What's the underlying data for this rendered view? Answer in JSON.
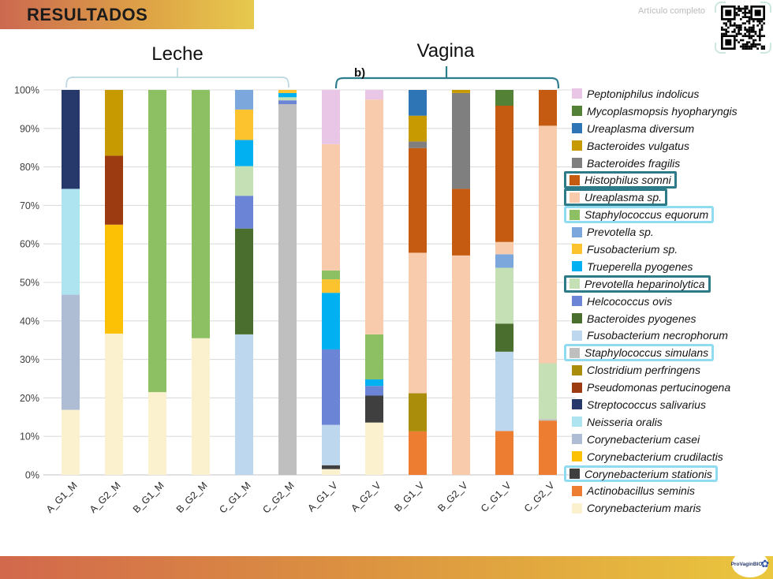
{
  "slide": {
    "title": "RESULTADOS",
    "article_note": "Artículo completo",
    "logo_text": "ProVaginBIO"
  },
  "chart_data": {
    "type": "bar",
    "subtype": "stacked-100-percent",
    "title": "",
    "panel_label": "b)",
    "group_labels": [
      {
        "label": "Leche",
        "categories": [
          "A_G1_M",
          "A_G2_M",
          "B_G1_M",
          "B_G2_M",
          "C_G1_M",
          "C_G2_M"
        ]
      },
      {
        "label": "Vagina",
        "categories": [
          "A_G1_V",
          "A_G2_V",
          "B_G1_V",
          "B_G2_V",
          "C_G1_V",
          "C_G2_V"
        ]
      }
    ],
    "y_ticks": [
      "0%",
      "10%",
      "20%",
      "30%",
      "40%",
      "50%",
      "60%",
      "70%",
      "80%",
      "90%",
      "100%"
    ],
    "ylim": [
      0,
      100
    ],
    "grid": true,
    "legend_position": "right",
    "highlight_colors": {
      "teal": "#2d7a88",
      "cyan": "#8fdcf0"
    },
    "categories": [
      "A_G1_M",
      "A_G2_M",
      "B_G1_M",
      "B_G2_M",
      "C_G1_M",
      "C_G2_M",
      "A_G1_V",
      "A_G2_V",
      "B_G1_V",
      "B_G2_V",
      "C_G1_V",
      "C_G2_V"
    ],
    "species": [
      {
        "id": "indolicus",
        "name": "Peptoniphilus indolicus",
        "color": "#eac6e6",
        "box": null
      },
      {
        "id": "hyopharyngis",
        "name": "Mycoplasmopsis hyopharyngis",
        "color": "#538135",
        "box": null
      },
      {
        "id": "diversum",
        "name": "Ureaplasma diversum",
        "color": "#2e75b6",
        "box": null
      },
      {
        "id": "vulgatus",
        "name": "Bacteroides vulgatus",
        "color": "#c79a02",
        "box": null
      },
      {
        "id": "fragilis",
        "name": "Bacteroides fragilis",
        "color": "#7f7f7f",
        "box": null
      },
      {
        "id": "somni",
        "name": "Histophilus somni",
        "color": "#c55a11",
        "box": "teal"
      },
      {
        "id": "ureaplasma_sp",
        "name": "Ureaplasma sp.",
        "color": "#f7cbac",
        "box": "teal"
      },
      {
        "id": "equorum",
        "name": "Staphylococcus equorum",
        "color": "#8dbf63",
        "box": "cyan"
      },
      {
        "id": "prevotella_sp",
        "name": "Prevotella sp.",
        "color": "#7ba7dc",
        "box": null
      },
      {
        "id": "fusobacterium_sp",
        "name": "Fusobacterium sp.",
        "color": "#fdc32e",
        "box": null
      },
      {
        "id": "pyogenes_t",
        "name": "Trueperella pyogenes",
        "color": "#00b0f0",
        "box": null
      },
      {
        "id": "heparinolytica",
        "name": "Prevotella heparinolytica",
        "color": "#c5e0b4",
        "box": "teal"
      },
      {
        "id": "ovis",
        "name": "Helcococcus ovis",
        "color": "#6b84d6",
        "box": null
      },
      {
        "id": "pyogenes_b",
        "name": "Bacteroides pyogenes",
        "color": "#4a6e2d",
        "box": null
      },
      {
        "id": "necrophorum",
        "name": "Fusobacterium necrophorum",
        "color": "#bdd7ee",
        "box": null
      },
      {
        "id": "simulans",
        "name": "Staphylococcus simulans",
        "color": "#bfbfbf",
        "box": "cyan"
      },
      {
        "id": "perfringens",
        "name": "Clostridium perfringens",
        "color": "#a98d0b",
        "box": null
      },
      {
        "id": "pertucinogena",
        "name": "Pseudomonas pertucinogena",
        "color": "#9c3a12",
        "box": null
      },
      {
        "id": "salivarius",
        "name": "Streptococcus salivarius",
        "color": "#27396b",
        "box": null
      },
      {
        "id": "oralis",
        "name": "Neisseria oralis",
        "color": "#aee4ef",
        "box": null
      },
      {
        "id": "casei",
        "name": "Corynebacterium casei",
        "color": "#aebcd4",
        "box": null
      },
      {
        "id": "crudilactis",
        "name": "Corynebacterium crudilactis",
        "color": "#fcc004",
        "box": null
      },
      {
        "id": "stationis",
        "name": "Corynebacterium stationis",
        "color": "#3f3f3f",
        "box": "cyan"
      },
      {
        "id": "seminis",
        "name": "Actinobacillus seminis",
        "color": "#ec7d31",
        "box": null
      },
      {
        "id": "maris",
        "name": "Corynebacterium maris",
        "color": "#fcf1cf",
        "box": null
      }
    ],
    "bars": [
      {
        "category": "A_G1_M",
        "segments": [
          [
            "maris",
            16.9
          ],
          [
            "casei",
            29.9
          ],
          [
            "oralis",
            27.5
          ],
          [
            "salivarius",
            25.7
          ]
        ]
      },
      {
        "category": "A_G2_M",
        "segments": [
          [
            "maris",
            36.7
          ],
          [
            "crudilactis",
            28.3
          ],
          [
            "pertucinogena",
            17.9
          ],
          [
            "vulgatus",
            17.1
          ]
        ]
      },
      {
        "category": "B_G1_M",
        "segments": [
          [
            "maris",
            21.5
          ],
          [
            "equorum",
            78.5
          ]
        ]
      },
      {
        "category": "B_G2_M",
        "segments": [
          [
            "maris",
            35.5
          ],
          [
            "equorum",
            64.5
          ]
        ]
      },
      {
        "category": "C_G1_M",
        "segments": [
          [
            "necrophorum",
            36.5
          ],
          [
            "pyogenes_b",
            27.5
          ],
          [
            "ovis",
            8.5
          ],
          [
            "heparinolytica",
            7.7
          ],
          [
            "pyogenes_t",
            6.8
          ],
          [
            "fusobacterium_sp",
            7.9
          ],
          [
            "prevotella_sp",
            5.1
          ]
        ]
      },
      {
        "category": "C_G2_M",
        "segments": [
          [
            "simulans",
            96.3
          ],
          [
            "ovis",
            1.0
          ],
          [
            "heparinolytica",
            0.8
          ],
          [
            "pyogenes_t",
            1.1
          ],
          [
            "fusobacterium_sp",
            0.8
          ]
        ]
      },
      {
        "category": "A_G1_V",
        "segments": [
          [
            "maris",
            1.5
          ],
          [
            "stationis",
            1.0
          ],
          [
            "necrophorum",
            10.5
          ],
          [
            "ovis",
            19.6
          ],
          [
            "pyogenes_t",
            14.7
          ],
          [
            "fusobacterium_sp",
            3.5
          ],
          [
            "equorum",
            2.3
          ],
          [
            "ureaplasma_sp",
            32.8
          ],
          [
            "indolicus",
            14.1
          ]
        ]
      },
      {
        "category": "A_G2_V",
        "segments": [
          [
            "maris",
            13.6
          ],
          [
            "stationis",
            7.0
          ],
          [
            "ovis",
            2.5
          ],
          [
            "pyogenes_t",
            1.7
          ],
          [
            "equorum",
            11.7
          ],
          [
            "ureaplasma_sp",
            61.0
          ],
          [
            "indolicus",
            2.5
          ]
        ]
      },
      {
        "category": "B_G1_V",
        "segments": [
          [
            "seminis",
            11.3
          ],
          [
            "perfringens",
            9.9
          ],
          [
            "ureaplasma_sp",
            36.5
          ],
          [
            "somni",
            27.2
          ],
          [
            "fragilis",
            1.7
          ],
          [
            "vulgatus",
            6.7
          ],
          [
            "diversum",
            6.7
          ]
        ]
      },
      {
        "category": "B_G2_V",
        "segments": [
          [
            "ureaplasma_sp",
            57.0
          ],
          [
            "somni",
            17.3
          ],
          [
            "fragilis",
            24.9
          ],
          [
            "vulgatus",
            0.8
          ]
        ]
      },
      {
        "category": "C_G1_V",
        "segments": [
          [
            "seminis",
            11.4
          ],
          [
            "necrophorum",
            20.6
          ],
          [
            "pyogenes_b",
            7.3
          ],
          [
            "heparinolytica",
            14.5
          ],
          [
            "prevotella_sp",
            3.5
          ],
          [
            "ureaplasma_sp",
            3.2
          ],
          [
            "somni",
            35.4
          ],
          [
            "hyopharyngis",
            4.1
          ]
        ]
      },
      {
        "category": "C_G2_V",
        "segments": [
          [
            "seminis",
            14.1
          ],
          [
            "simulans",
            0.4
          ],
          [
            "heparinolytica",
            14.5
          ],
          [
            "ureaplasma_sp",
            61.7
          ],
          [
            "somni",
            9.3
          ]
        ]
      }
    ]
  }
}
